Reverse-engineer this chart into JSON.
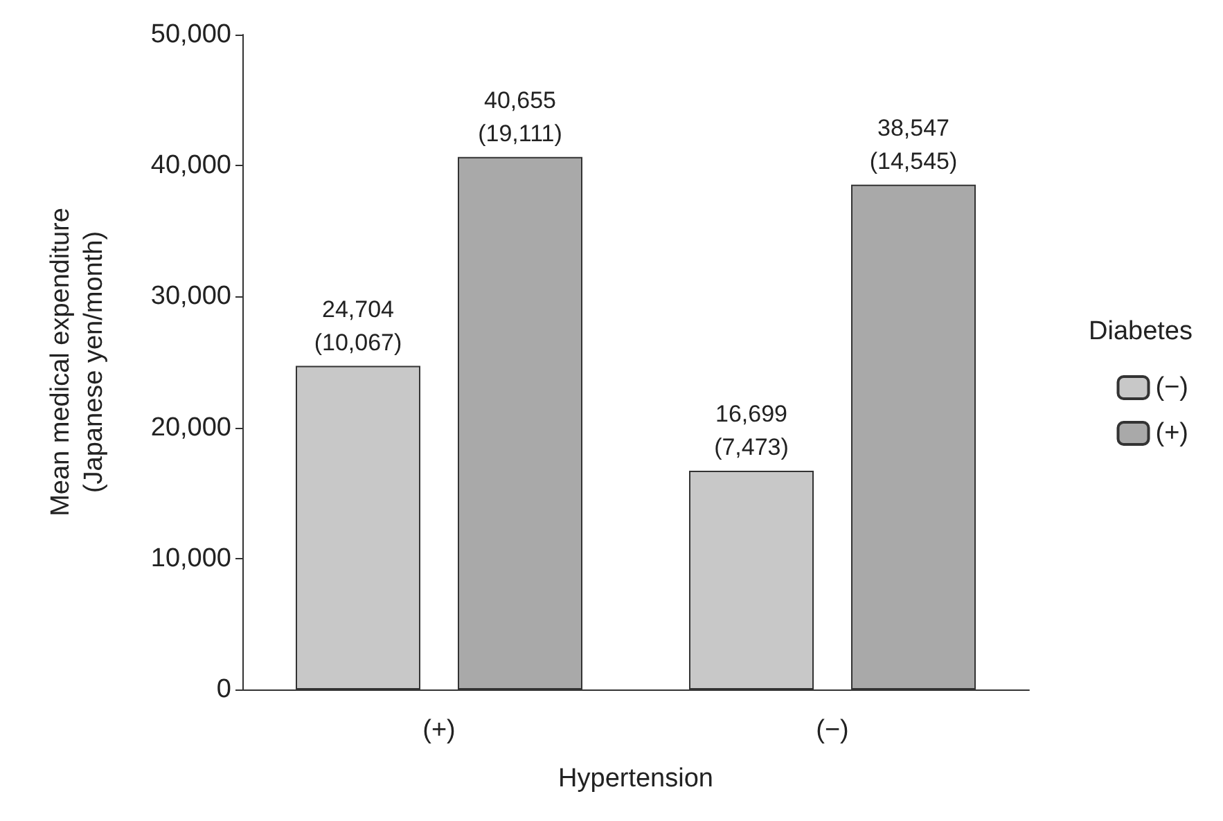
{
  "chart_data": {
    "type": "bar",
    "categories": [
      "(+)",
      "(−)"
    ],
    "xlabel": "Hypertension",
    "ylabel": "Mean medical expenditure\n(Japanese yen/month)",
    "legend_title": "Diabetes",
    "series": [
      {
        "name": "(−)",
        "color": "#c8c8c8",
        "values": [
          24704,
          16699
        ],
        "value_labels": [
          "24,704\n(10,067)",
          "16,699\n(7,473)"
        ]
      },
      {
        "name": "(+)",
        "color": "#a9a9a9",
        "values": [
          40655,
          38547
        ],
        "value_labels": [
          "40,655\n(19,111)",
          "38,547\n(14,545)"
        ]
      }
    ],
    "ylim": [
      0,
      50000
    ],
    "yticks": [
      0,
      {
        "value": 10000,
        "label": "10,000"
      },
      {
        "value": 20000,
        "label": "20,000"
      },
      {
        "value": 30000,
        "label": "30,000"
      },
      {
        "value": 40000,
        "label": "40,000"
      },
      {
        "value": 50000,
        "label": "50,000"
      }
    ],
    "grid": false,
    "legend": "right"
  }
}
